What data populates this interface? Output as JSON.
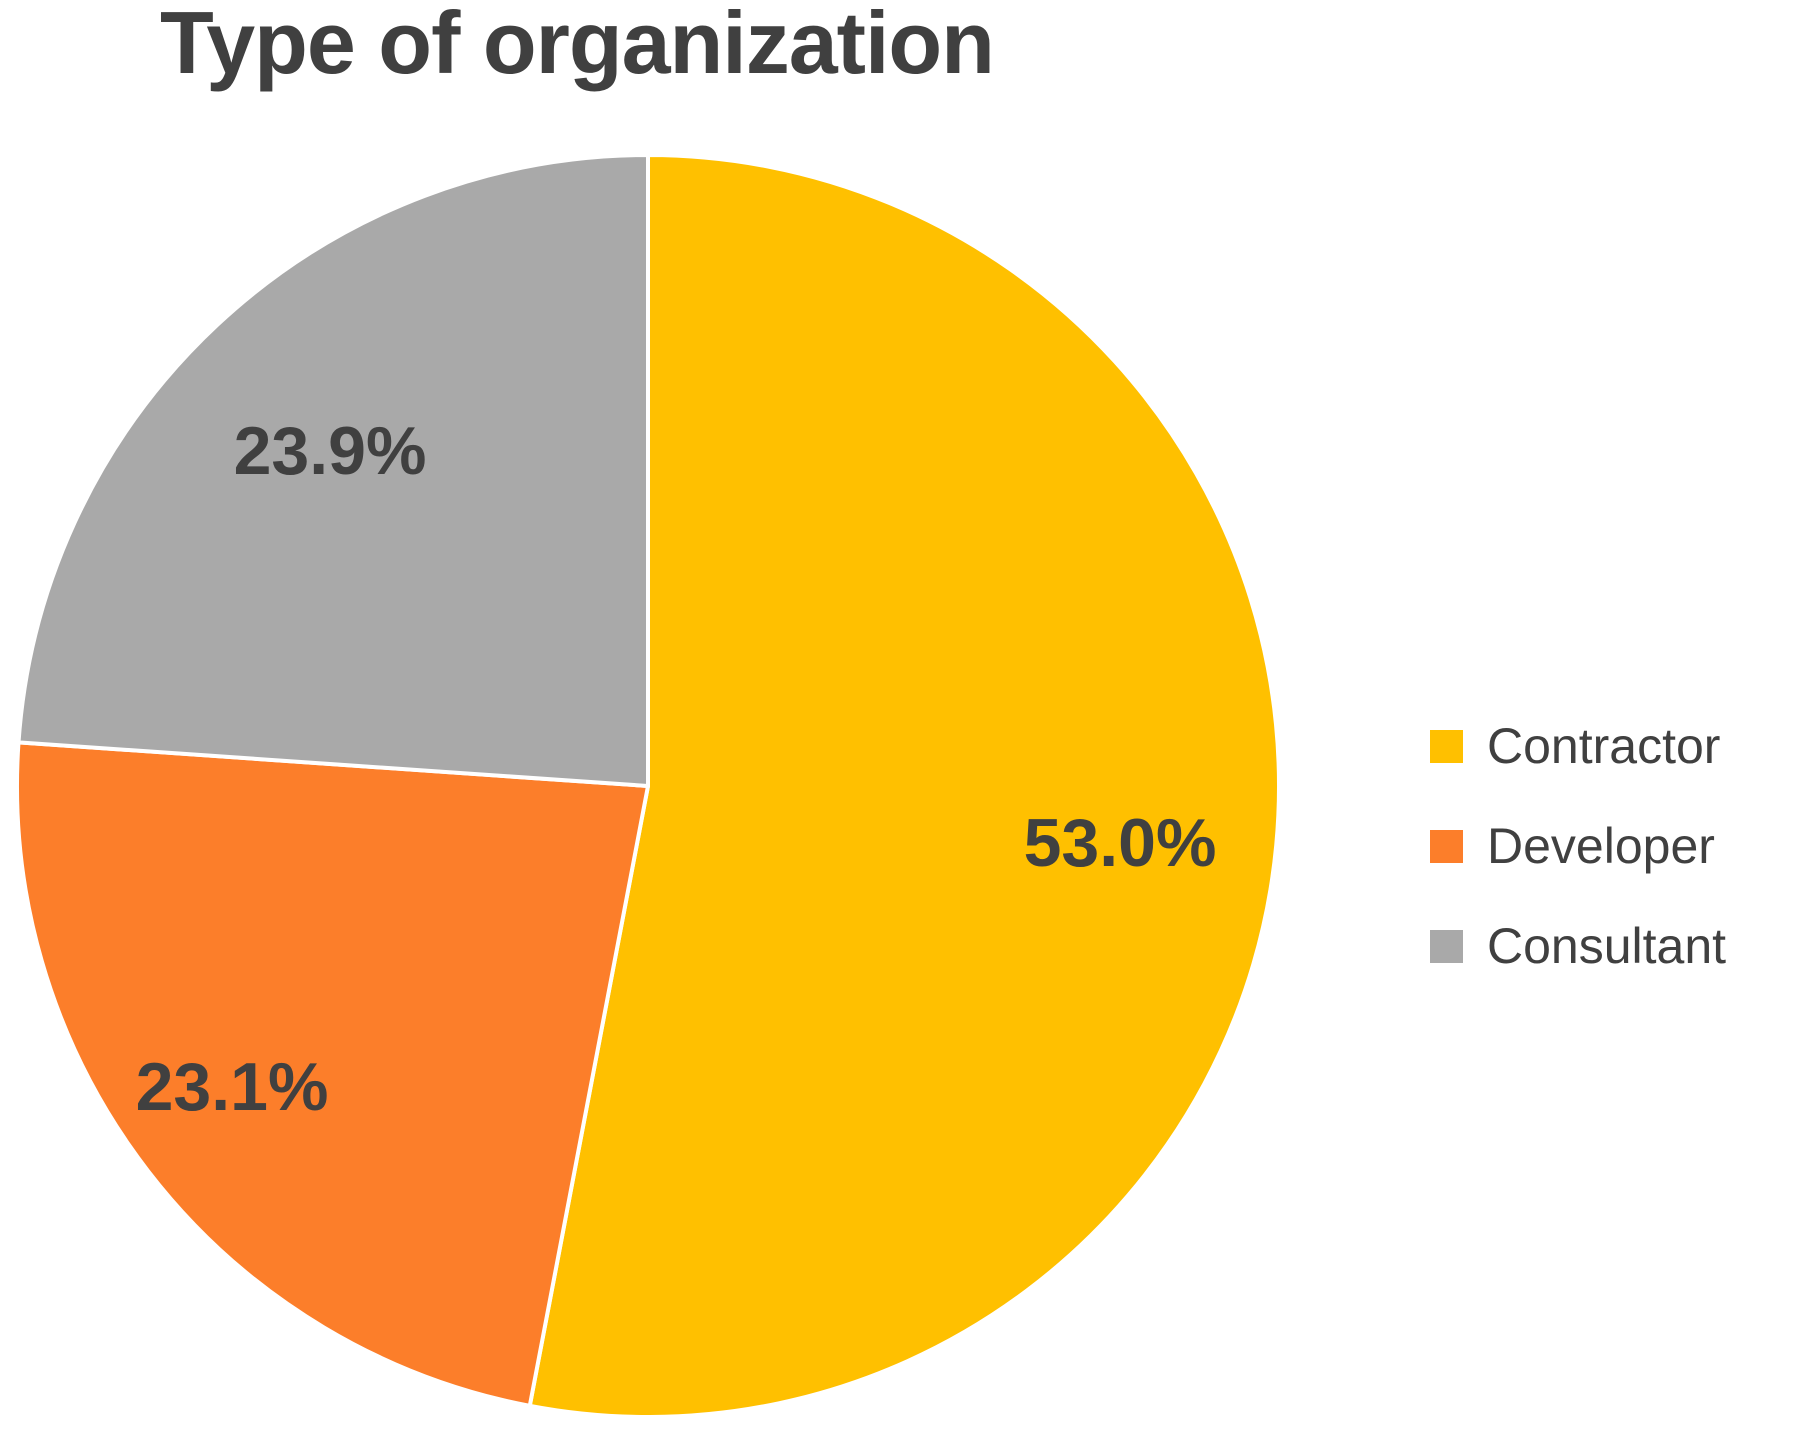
{
  "page": {
    "background": "#FFFFFF"
  },
  "chart_data": {
    "type": "pie",
    "title": "Type of organization",
    "categories": [
      "Contractor",
      "Developer",
      "Consultant"
    ],
    "values": [
      53.0,
      23.1,
      23.9
    ],
    "slice_labels": [
      "53.0%",
      "23.1%",
      "23.9%"
    ],
    "colors": [
      "#FFC000",
      "#FC7E2A",
      "#A9A9A9"
    ],
    "start_angle_deg": 0,
    "direction": "clockwise",
    "legend_position": "right",
    "text_color": "#404040",
    "separator_color": "#FFFFFF",
    "legend": [
      {
        "label": "Contractor",
        "color": "#FFC000"
      },
      {
        "label": "Developer",
        "color": "#FC7E2A"
      },
      {
        "label": "Consultant",
        "color": "#A9A9A9"
      }
    ]
  }
}
